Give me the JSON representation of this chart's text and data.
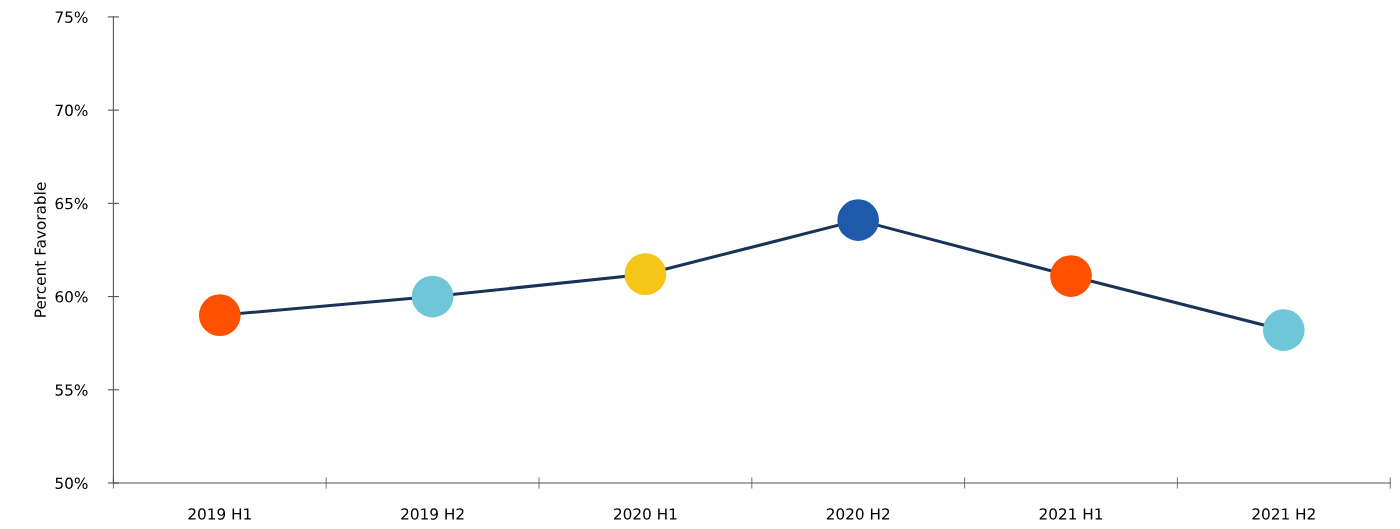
{
  "chart_data": {
    "type": "line",
    "ylabel": "Percent Favorable",
    "categories": [
      "2019 H1",
      "2019 H2",
      "2020 H1",
      "2020 H2",
      "2021 H1",
      "2021 H2"
    ],
    "series": [
      {
        "color": "#1b3358",
        "values": [
          59.0,
          60.0,
          61.2,
          64.1,
          61.1,
          58.2
        ],
        "colors": [
          "#ff5000",
          "#6ec6d8",
          "#f5c518",
          "#1f5aaa",
          "#ff5000",
          "#6ec6d8"
        ]
      }
    ],
    "ylim": [
      50,
      75
    ],
    "yticks": [
      {
        "value": 50,
        "label": "50%"
      },
      {
        "value": 55,
        "label": "55%"
      },
      {
        "value": 60,
        "label": "60%"
      },
      {
        "value": 65,
        "label": "65%"
      },
      {
        "value": 70,
        "label": "70%"
      },
      {
        "value": 75,
        "label": "75%"
      }
    ],
    "marker": "circle",
    "grid": false
  }
}
